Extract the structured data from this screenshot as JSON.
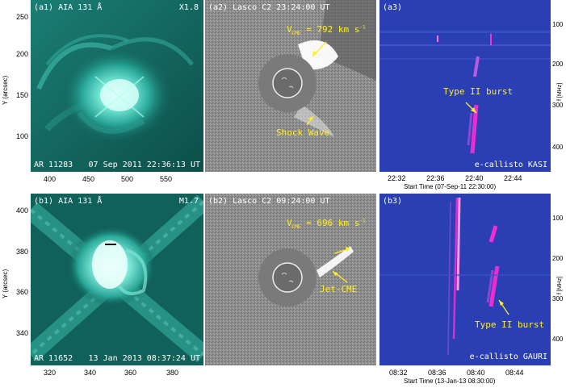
{
  "row1": {
    "aia": {
      "panel_label": "(a1) AIA 131 Å",
      "flare_class": "X1.8",
      "region": "AR 11283",
      "datetime": "07 Sep 2011 22:36:13 UT",
      "yaxis_label": "Y (arcsec)",
      "yticks": [
        "250",
        "200",
        "150",
        "100"
      ],
      "xticks": [
        "400",
        "450",
        "500",
        "550"
      ]
    },
    "lasco": {
      "panel_label": "(a2) Lasco C2 23:24:00 UT",
      "speed": "V",
      "speed_sub": "CME",
      "speed_value": "= 792 km s",
      "speed_sup": "-1",
      "feature": "Shock Wave"
    },
    "callisto": {
      "panel_label": "(a3)",
      "feature": "Type II burst",
      "station": "e-callisto KASI",
      "yaxis_label": "f [MHz]",
      "yticks": [
        "100",
        "200",
        "300",
        "400"
      ],
      "xticks": [
        "22:32",
        "22:36",
        "22:40",
        "22:44"
      ],
      "xlabel": "Start Time (07-Sep-11 22:30:00)"
    }
  },
  "row2": {
    "aia": {
      "panel_label": "(b1) AIA 131 Å",
      "flare_class": "M1.7",
      "region": "AR 11652",
      "datetime": "13 Jan 2013 08:37:24 UT",
      "yaxis_label": "Y (arcsec)",
      "yticks": [
        "400",
        "380",
        "360",
        "340"
      ],
      "xticks": [
        "320",
        "340",
        "360",
        "380"
      ]
    },
    "lasco": {
      "panel_label": "(b2) Lasco C2 09:24:00 UT",
      "speed": "V",
      "speed_sub": "CME",
      "speed_value": "= 696 km s",
      "speed_sup": "-1",
      "feature": "Jet-CME"
    },
    "callisto": {
      "panel_label": "(b3)",
      "feature": "Type II burst",
      "station": "e-callisto GAURI",
      "yaxis_label": "f [MHz]",
      "yticks": [
        "100",
        "200",
        "300",
        "400"
      ],
      "xticks": [
        "08:32",
        "08:36",
        "08:40",
        "08:44"
      ],
      "xlabel": "Start Time (13-Jan-13 08:30:00)"
    }
  },
  "colors": {
    "aia_teal": "#2fb8a8",
    "callisto_blue": "#2a3fb4",
    "label_yellow": "#ffee22",
    "burst_magenta": "#ff2bd6"
  }
}
